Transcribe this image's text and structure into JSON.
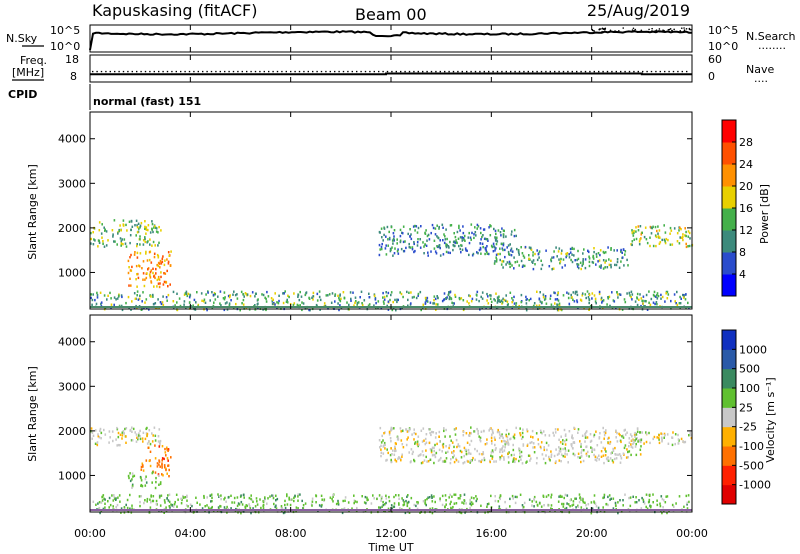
{
  "header": {
    "station": "Kapuskasing (fitACF)",
    "beam": "Beam 00",
    "date": "25/Aug/2019"
  },
  "noise_panel": {
    "left_label": "N.Sky",
    "right_label": "N.Search",
    "left_ticks": [
      "10^5",
      "10^0"
    ],
    "right_ticks": [
      "10^5",
      "10^0"
    ],
    "right_legend_dots": "........"
  },
  "freq_panel": {
    "left_label_top": "Freq.",
    "left_label_bottom": "[MHz]",
    "right_label": "Nave",
    "left_ticks": [
      "18",
      "8"
    ],
    "right_ticks": [
      "60",
      "0"
    ],
    "right_legend_dots": "....",
    "freq_mhz_segments": [
      [
        0,
        11.8,
        10.5
      ],
      [
        11.8,
        22,
        10.9
      ],
      [
        22,
        24,
        10.5
      ]
    ],
    "nave_level": 30
  },
  "cpid": {
    "label": "CPID",
    "mode_text": "normal (fast) 151"
  },
  "power_panel": {
    "ylabel": "Slant Range [km]",
    "yticks": [
      "4000",
      "3000",
      "2000",
      "1000"
    ],
    "colorbar_label": "Power [dB]",
    "colorbar_ticks": [
      "28",
      "24",
      "20",
      "16",
      "12",
      "8",
      "4"
    ],
    "colors": [
      "#0000ff",
      "#2a4ccc",
      "#3c8a7c",
      "#44b04a",
      "#e8d000",
      "#ff9000",
      "#ff5000",
      "#ff0000"
    ]
  },
  "velocity_panel": {
    "ylabel": "Slant Range [km]",
    "yticks": [
      "4000",
      "3000",
      "2000",
      "1000"
    ],
    "colorbar_label": "Velocity [m s⁻¹]",
    "colorbar_ticks": [
      "1000",
      "500",
      "100",
      "25",
      "-25",
      "-100",
      "-500",
      "-1000"
    ],
    "colors": [
      "#1030c0",
      "#2a5aa8",
      "#3a8a60",
      "#60c030",
      "#c8c8c8",
      "#ffb000",
      "#ff7000",
      "#ff2000",
      "#e00000"
    ]
  },
  "time_axis": {
    "xlabel": "Time UT",
    "ticks": [
      "00:00",
      "04:00",
      "08:00",
      "12:00",
      "16:00",
      "20:00",
      "00:00"
    ]
  },
  "chart_data": {
    "type": "heatmap",
    "x_unit": "hours UT",
    "x_range": [
      0,
      24
    ],
    "y_range_km": [
      180,
      4600
    ],
    "power_regions": [
      {
        "t": [
          0.0,
          2.8
        ],
        "range_km": [
          1600,
          2200
        ],
        "power_db": 16
      },
      {
        "t": [
          1.5,
          3.2
        ],
        "range_km": [
          700,
          1500
        ],
        "power_db": 24
      },
      {
        "t": [
          0.0,
          24.0
        ],
        "range_km": [
          180,
          600
        ],
        "power_db": 14
      },
      {
        "t": [
          11.5,
          17.0
        ],
        "range_km": [
          1400,
          2100
        ],
        "power_db": 12
      },
      {
        "t": [
          16.0,
          21.5
        ],
        "range_km": [
          1100,
          1600
        ],
        "power_db": 14
      },
      {
        "t": [
          21.5,
          24.0
        ],
        "range_km": [
          1600,
          2100
        ],
        "power_db": 18
      }
    ],
    "velocity_regions": [
      {
        "t": [
          0.0,
          2.8
        ],
        "range_km": [
          1700,
          2100
        ],
        "velocity_ms": 0
      },
      {
        "t": [
          2.0,
          3.2
        ],
        "range_km": [
          1000,
          1700
        ],
        "velocity_ms": -300
      },
      {
        "t": [
          1.5,
          2.8
        ],
        "range_km": [
          700,
          1100
        ],
        "velocity_ms": 100
      },
      {
        "t": [
          0.0,
          24.0
        ],
        "range_km": [
          180,
          600
        ],
        "velocity_ms": 80
      },
      {
        "t": [
          11.5,
          22.0
        ],
        "range_km": [
          1300,
          2100
        ],
        "velocity_ms": 0
      },
      {
        "t": [
          21.5,
          24.0
        ],
        "range_km": [
          1700,
          2000
        ],
        "velocity_ms": 0
      }
    ]
  }
}
